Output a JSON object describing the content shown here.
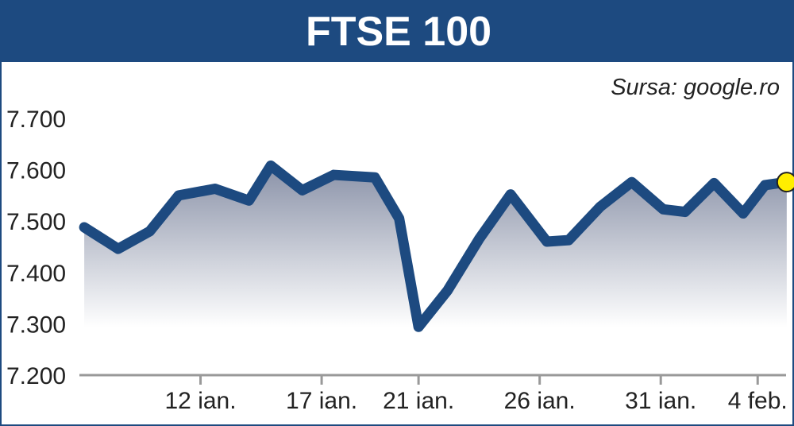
{
  "chart_data": {
    "type": "area",
    "title": "FTSE 100",
    "source": "Sursa: google.ro",
    "y_ticks": [
      "7.200",
      "7.300",
      "7.400",
      "7.500",
      "7.600",
      "7.700"
    ],
    "y_tick_values": [
      7200,
      7300,
      7400,
      7500,
      7600,
      7700
    ],
    "ylim": [
      7200,
      7700
    ],
    "x_ticks": [
      "12 ian.",
      "17 ian.",
      "21 ian.",
      "26 ian.",
      "31 ian.",
      "4 feb."
    ],
    "x_tick_values": [
      12.0,
      17.0,
      21.0,
      26.0,
      31.0,
      35.0
    ],
    "xlim": [
      7.0,
      36.5
    ],
    "grid": false,
    "series": [
      {
        "x": [
          7.2,
          8.6,
          9.9,
          11.1,
          12.6,
          14.0,
          14.9,
          16.2,
          17.5,
          19.2,
          20.2,
          21.0,
          22.2,
          23.5,
          24.8,
          26.3,
          27.2,
          28.5,
          29.8,
          31.1,
          32.0,
          33.2,
          34.4,
          35.3
        ],
        "y": [
          7488,
          7446,
          7480,
          7550,
          7563,
          7540,
          7608,
          7560,
          7590,
          7585,
          7505,
          7294,
          7365,
          7465,
          7552,
          7460,
          7463,
          7528,
          7576,
          7523,
          7518,
          7574,
          7515,
          7570
        ]
      }
    ],
    "last_point": {
      "x": 36.2,
      "y": 7576
    },
    "colors": {
      "line": "#1d4a80",
      "title_bg": "#1d4a80",
      "marker": "#ffee00",
      "axis": "#999999"
    }
  }
}
